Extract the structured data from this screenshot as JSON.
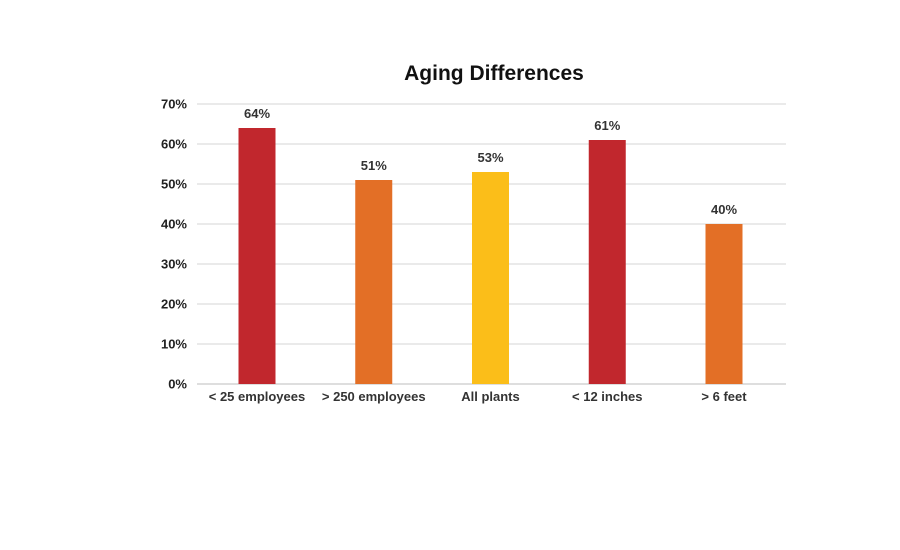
{
  "chart_data": {
    "type": "bar",
    "title": "Aging Differences",
    "xlabel": "",
    "ylabel": "",
    "categories": [
      "< 25 employees",
      "> 250 employees",
      "All plants",
      "< 12 inches",
      "> 6 feet"
    ],
    "values": [
      64,
      51,
      53,
      61,
      40
    ],
    "data_labels": [
      "64%",
      "51%",
      "53%",
      "61%",
      "40%"
    ],
    "bar_colors": [
      "#c1272d",
      "#e36f26",
      "#fbbe19",
      "#c1272d",
      "#e36f26"
    ],
    "ylim": [
      0,
      70
    ],
    "yticks": [
      0,
      10,
      20,
      30,
      40,
      50,
      60,
      70
    ],
    "ytick_labels": [
      "0%",
      "10%",
      "20%",
      "30%",
      "40%",
      "50%",
      "60%",
      "70%"
    ],
    "grid": true,
    "legend": "none"
  }
}
